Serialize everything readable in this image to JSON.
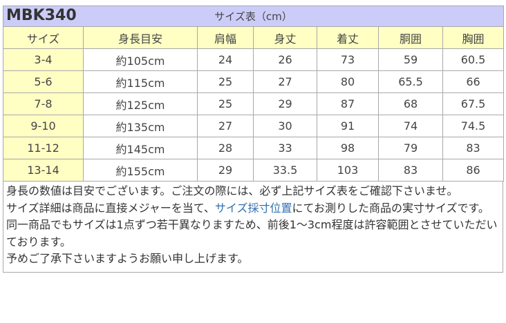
{
  "title": {
    "model": "MBK340",
    "caption": "サイズ表（cm）"
  },
  "headers": [
    "サイズ",
    "身長目安",
    "肩幅",
    "身丈",
    "着丈",
    "胴囲",
    "胸囲"
  ],
  "rows": [
    [
      "3-4",
      "約105cm",
      "24",
      "26",
      "73",
      "59",
      "60.5"
    ],
    [
      "5-6",
      "約115cm",
      "25",
      "27",
      "80",
      "65.5",
      "66"
    ],
    [
      "7-8",
      "約125cm",
      "25",
      "29",
      "87",
      "68",
      "67.5"
    ],
    [
      "9-10",
      "約135cm",
      "27",
      "30",
      "91",
      "74",
      "74.5"
    ],
    [
      "11-12",
      "約145cm",
      "28",
      "33",
      "98",
      "79",
      "83"
    ],
    [
      "13-14",
      "約155cm",
      "29",
      "33.5",
      "103",
      "83",
      "86"
    ]
  ],
  "notes": {
    "line1": "身長の数値は目安でございます。ご注文の際には、必ず上記サイズ表をご確認下さいませ。",
    "line2_before": "サイズ詳細は商品に直接メジャーを当て、",
    "line2_link": "サイズ採寸位置",
    "line2_after": "にてお測りした商品の実寸サイズです。",
    "line3": "同一商品でもサイズは1点ずつ若干異なりますため、前後1～3cm程度は許容範囲とさせていただいております。",
    "line4": "予めご了承下さいますようお願い申し上げます。"
  },
  "colors": {
    "title_bg": "#ccccf8",
    "header_bg": "#ffffc4",
    "link": "#3070b0"
  }
}
